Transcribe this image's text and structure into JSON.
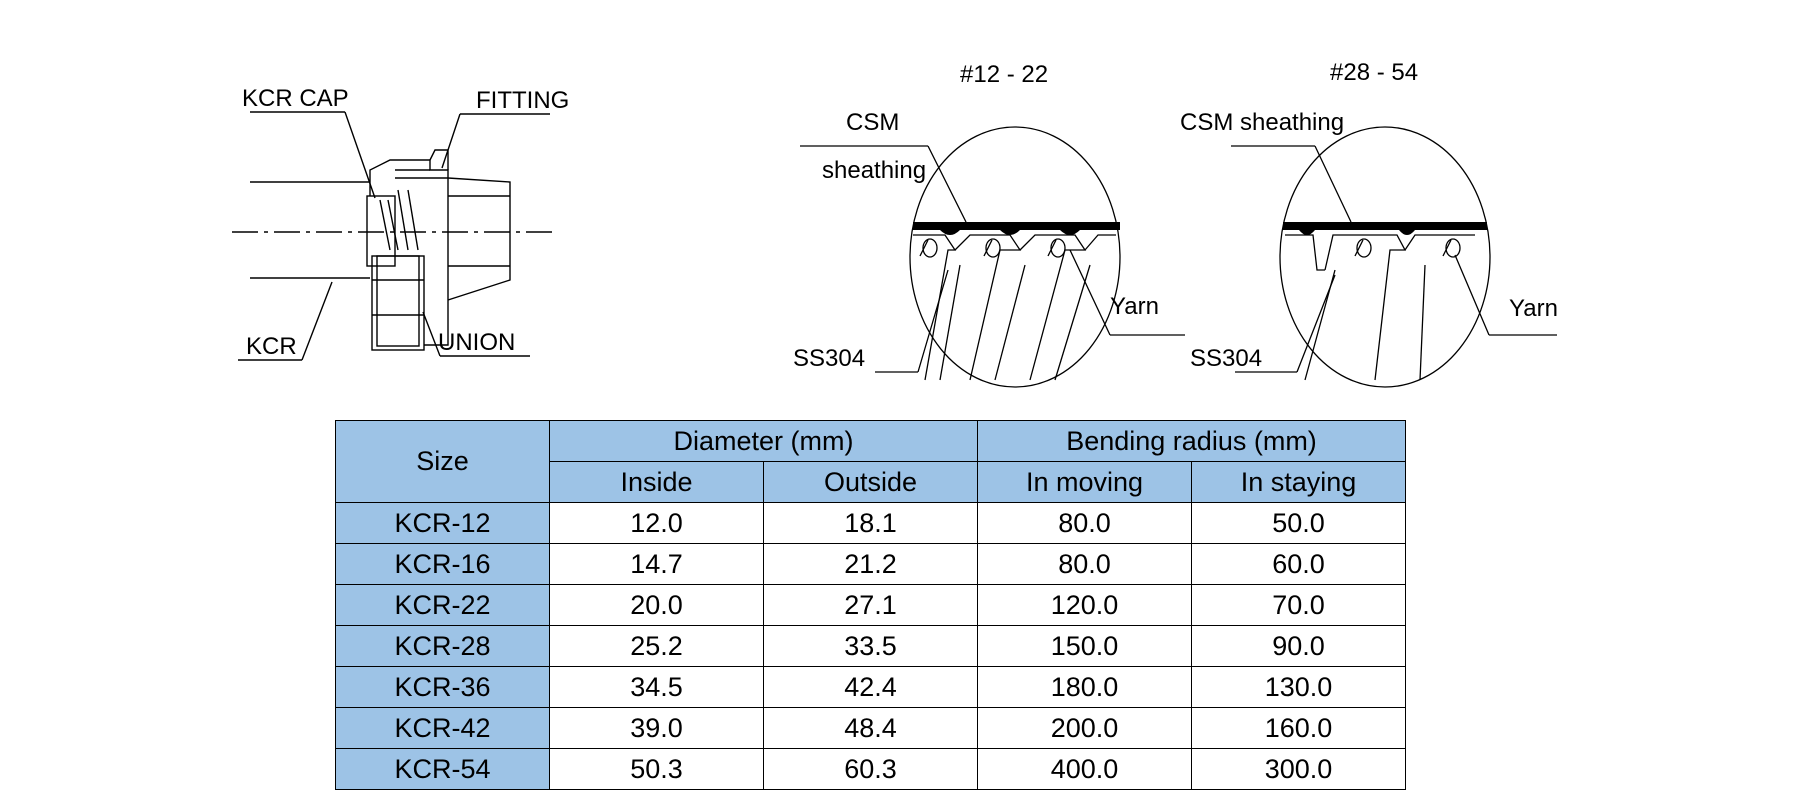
{
  "fitting_diagram": {
    "labels": {
      "kcr_cap": "KCR CAP",
      "fitting": "FITTING",
      "kcr": "KCR",
      "union": "UNION"
    }
  },
  "section_small": {
    "title": "#12 - 22",
    "csm_line1": "CSM",
    "csm_line2": "sheathing",
    "yarn": "Yarn",
    "ss304": "SS304"
  },
  "section_large": {
    "title": "#28 - 54",
    "csm": "CSM sheathing",
    "yarn": "Yarn",
    "ss304": "SS304"
  },
  "table": {
    "header_fill": "#9DC3E6",
    "headers": {
      "size": "Size",
      "diameter": "Diameter (mm)",
      "bending_radius": "Bending radius (mm)",
      "inside": "Inside",
      "outside": "Outside",
      "in_moving": "In moving",
      "in_staying": "In staying"
    },
    "rows": [
      [
        "KCR-12",
        "12.0",
        "18.1",
        "80.0",
        "50.0"
      ],
      [
        "KCR-16",
        "14.7",
        "21.2",
        "80.0",
        "60.0"
      ],
      [
        "KCR-22",
        "20.0",
        "27.1",
        "120.0",
        "70.0"
      ],
      [
        "KCR-28",
        "25.2",
        "33.5",
        "150.0",
        "90.0"
      ],
      [
        "KCR-36",
        "34.5",
        "42.4",
        "180.0",
        "130.0"
      ],
      [
        "KCR-42",
        "39.0",
        "48.4",
        "200.0",
        "160.0"
      ],
      [
        "KCR-54",
        "50.3",
        "60.3",
        "400.0",
        "300.0"
      ]
    ]
  }
}
